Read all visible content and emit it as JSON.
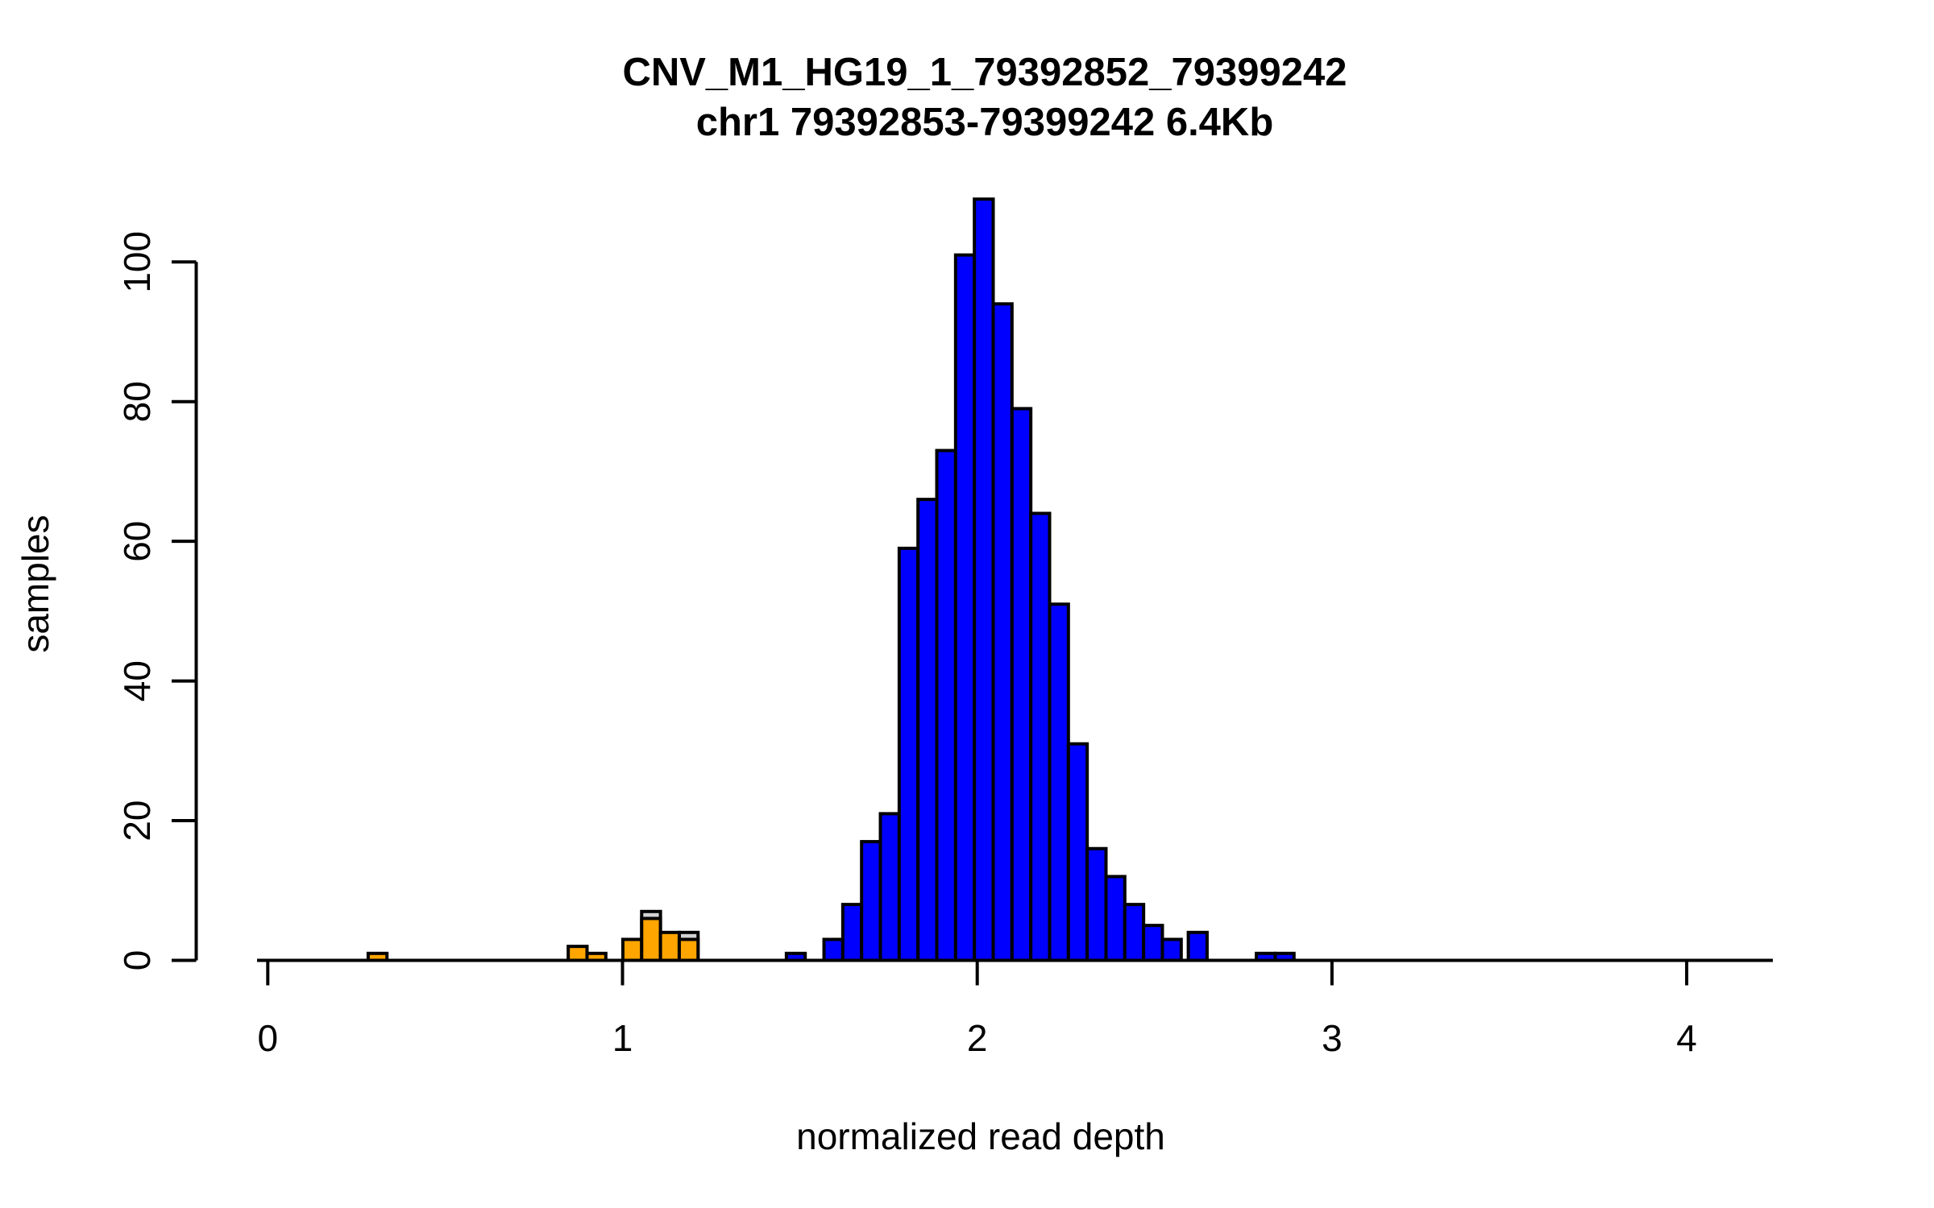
{
  "figure": {
    "title_line1": "CNV_M1_HG19_1_79392852_79399242",
    "title_line2": "chr1 79392853-79399242 6.4Kb",
    "x_axis_label": "normalized read depth",
    "y_axis_label": "samples"
  },
  "chart_data": {
    "type": "bar",
    "subtype": "histogram",
    "title": "CNV_M1_HG19_1_79392852_79399242 / chr1 79392853-79399242 6.4Kb",
    "xlabel": "normalized read depth",
    "ylabel": "samples",
    "xlim": [
      -0.03,
      4.24
    ],
    "ylim": [
      0,
      109
    ],
    "grid": false,
    "legend": false,
    "x_ticks": [
      "0",
      "1",
      "2",
      "3",
      "4"
    ],
    "x_tick_values": [
      0,
      1,
      2,
      3,
      4
    ],
    "y_ticks": [
      "0",
      "20",
      "40",
      "60",
      "80",
      "100"
    ],
    "y_tick_values": [
      0,
      20,
      40,
      60,
      80,
      100
    ],
    "bin_width": 0.053,
    "colors": {
      "orange": "#FFA500",
      "blue": "#0000FF",
      "gray": "#D3D3D3",
      "border": "#000000",
      "axis": "#000000",
      "background": "#FFFFFF"
    },
    "gray_overlay_bins": [
      {
        "x": 1.054,
        "count": 7
      },
      {
        "x": 1.16,
        "count": 4
      }
    ],
    "bins": [
      {
        "x": 0.283,
        "count": 1,
        "color": "orange"
      },
      {
        "x": 0.847,
        "count": 2,
        "color": "orange"
      },
      {
        "x": 0.9,
        "count": 1,
        "color": "orange"
      },
      {
        "x": 1.001,
        "count": 3,
        "color": "orange"
      },
      {
        "x": 1.054,
        "count": 6,
        "color": "orange"
      },
      {
        "x": 1.107,
        "count": 4,
        "color": "orange"
      },
      {
        "x": 1.16,
        "count": 3,
        "color": "orange"
      },
      {
        "x": 1.462,
        "count": 1,
        "color": "blue"
      },
      {
        "x": 1.568,
        "count": 3,
        "color": "blue"
      },
      {
        "x": 1.621,
        "count": 8,
        "color": "blue"
      },
      {
        "x": 1.674,
        "count": 17,
        "color": "blue"
      },
      {
        "x": 1.727,
        "count": 21,
        "color": "blue"
      },
      {
        "x": 1.78,
        "count": 59,
        "color": "blue"
      },
      {
        "x": 1.833,
        "count": 66,
        "color": "blue"
      },
      {
        "x": 1.886,
        "count": 73,
        "color": "blue"
      },
      {
        "x": 1.939,
        "count": 101,
        "color": "blue"
      },
      {
        "x": 1.992,
        "count": 109,
        "color": "blue"
      },
      {
        "x": 2.045,
        "count": 94,
        "color": "blue"
      },
      {
        "x": 2.098,
        "count": 79,
        "color": "blue"
      },
      {
        "x": 2.151,
        "count": 64,
        "color": "blue"
      },
      {
        "x": 2.204,
        "count": 51,
        "color": "blue"
      },
      {
        "x": 2.257,
        "count": 31,
        "color": "blue"
      },
      {
        "x": 2.31,
        "count": 16,
        "color": "blue"
      },
      {
        "x": 2.363,
        "count": 12,
        "color": "blue"
      },
      {
        "x": 2.416,
        "count": 8,
        "color": "blue"
      },
      {
        "x": 2.469,
        "count": 5,
        "color": "blue"
      },
      {
        "x": 2.522,
        "count": 3,
        "color": "blue"
      },
      {
        "x": 2.595,
        "count": 4,
        "color": "blue"
      },
      {
        "x": 2.787,
        "count": 1,
        "color": "blue"
      },
      {
        "x": 2.84,
        "count": 1,
        "color": "blue"
      }
    ]
  }
}
